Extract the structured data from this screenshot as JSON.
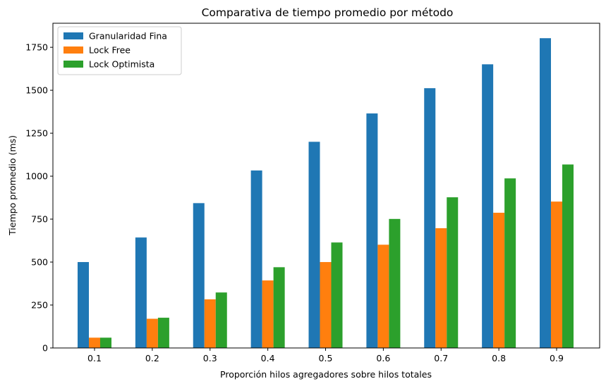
{
  "chart_data": {
    "type": "bar",
    "title": "Comparativa de tiempo promedio por método",
    "xlabel": "Proporción hilos agregadores sobre hilos totales",
    "ylabel": "Tiempo promedio (ms)",
    "categories": [
      "0.1",
      "0.2",
      "0.3",
      "0.4",
      "0.5",
      "0.6",
      "0.7",
      "0.8",
      "0.9"
    ],
    "yticks": [
      0,
      250,
      500,
      750,
      1000,
      1250,
      1500,
      1750
    ],
    "ylim": [
      0,
      1890
    ],
    "grid": false,
    "legend_position": "top-left",
    "series": [
      {
        "name": "Granularidad Fina",
        "color": "#1f77b4",
        "values": [
          500,
          643,
          843,
          1033,
          1200,
          1365,
          1512,
          1651,
          1803
        ]
      },
      {
        "name": "Lock Free",
        "color": "#ff7f0e",
        "values": [
          60,
          170,
          283,
          393,
          500,
          601,
          697,
          787,
          852
        ]
      },
      {
        "name": "Lock Optimista",
        "color": "#2ca02c",
        "values": [
          60,
          176,
          323,
          470,
          614,
          751,
          877,
          987,
          1068
        ]
      }
    ]
  }
}
